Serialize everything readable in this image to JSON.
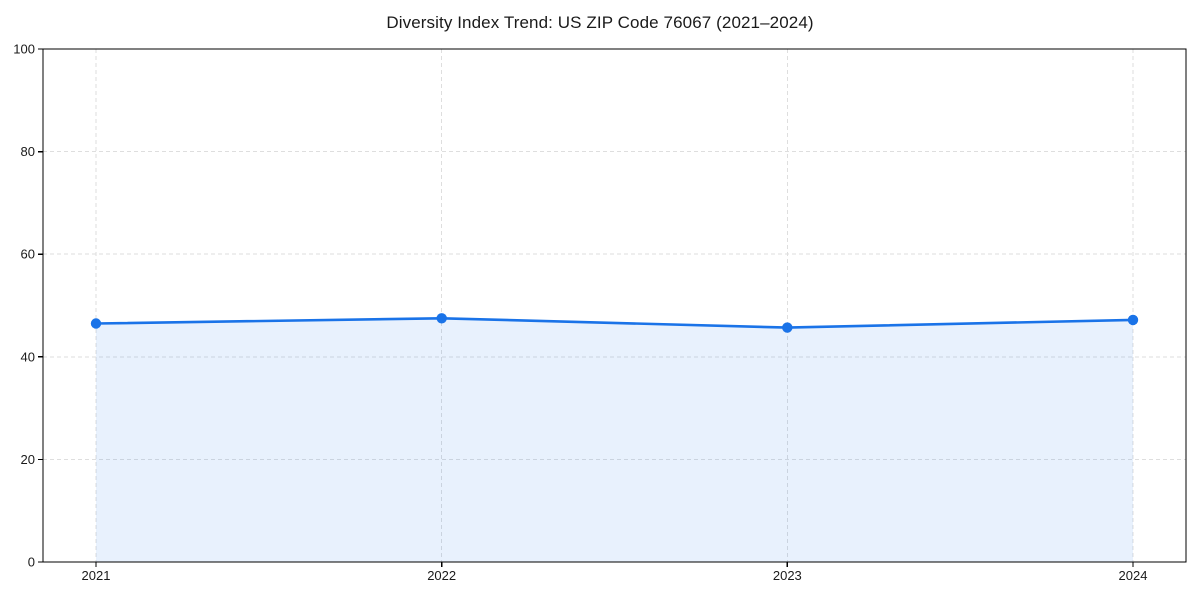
{
  "page": {
    "background": "#ffffff"
  },
  "chart_data": {
    "type": "area",
    "title": "Diversity Index Trend: US ZIP Code 76067 (2021–2024)",
    "x": [
      "2021",
      "2022",
      "2023",
      "2024"
    ],
    "series": [
      {
        "name": "Diversity Index",
        "values": [
          46.5,
          47.5,
          45.7,
          47.2
        ]
      }
    ],
    "xlabel": "",
    "ylabel": "",
    "ylim": [
      0,
      100
    ],
    "yticks": [
      0,
      20,
      40,
      60,
      80,
      100
    ],
    "grid": true,
    "grid_style": "dashed",
    "legend": "none",
    "colors": {
      "line": "#1a73e8",
      "marker": "#1a73e8",
      "fill": "#1a73e8",
      "fill_opacity": 0.1,
      "grid": "#dedede",
      "axis": "#000000",
      "tick_label": "#1a1a1a"
    }
  }
}
